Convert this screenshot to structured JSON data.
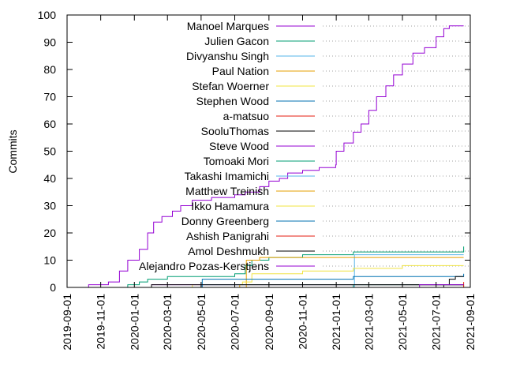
{
  "chart_data": {
    "type": "line",
    "title": "",
    "xlabel": "",
    "ylabel": "Commits",
    "xlim": [
      "2019-09-01",
      "2021-09-01"
    ],
    "ylim": [
      0,
      100
    ],
    "grid": false,
    "legend_position": "top-left",
    "x_ticks": [
      "2019-09-01",
      "2019-11-01",
      "2020-01-01",
      "2020-03-01",
      "2020-05-01",
      "2020-07-01",
      "2020-09-01",
      "2020-11-01",
      "2021-01-01",
      "2021-03-01",
      "2021-05-01",
      "2021-07-01",
      "2021-09-01"
    ],
    "y_ticks": [
      0,
      10,
      20,
      30,
      40,
      50,
      60,
      70,
      80,
      90,
      100
    ],
    "series": [
      {
        "name": "Manoel Marques",
        "color": "#9400d3",
        "points": [
          [
            "2019-09-15",
            0
          ],
          [
            "2019-10-10",
            1
          ],
          [
            "2019-11-15",
            2
          ],
          [
            "2019-12-05",
            6
          ],
          [
            "2019-12-20",
            10
          ],
          [
            "2020-01-10",
            14
          ],
          [
            "2020-01-25",
            20
          ],
          [
            "2020-02-05",
            24
          ],
          [
            "2020-02-20",
            26
          ],
          [
            "2020-03-10",
            28
          ],
          [
            "2020-03-25",
            30
          ],
          [
            "2020-04-15",
            32
          ],
          [
            "2020-05-20",
            33
          ],
          [
            "2020-06-15",
            33
          ],
          [
            "2020-07-01",
            34
          ],
          [
            "2020-07-20",
            35
          ],
          [
            "2020-08-15",
            37
          ],
          [
            "2020-09-01",
            39
          ],
          [
            "2020-09-20",
            40
          ],
          [
            "2020-10-05",
            42
          ],
          [
            "2020-11-01",
            43
          ],
          [
            "2020-12-01",
            44
          ],
          [
            "2020-12-31",
            45
          ],
          [
            "2021-01-01",
            50
          ],
          [
            "2021-01-15",
            53
          ],
          [
            "2021-02-01",
            57
          ],
          [
            "2021-02-15",
            60
          ],
          [
            "2021-03-01",
            65
          ],
          [
            "2021-03-15",
            70
          ],
          [
            "2021-04-01",
            74
          ],
          [
            "2021-04-15",
            78
          ],
          [
            "2021-05-01",
            82
          ],
          [
            "2021-05-20",
            86
          ],
          [
            "2021-06-10",
            88
          ],
          [
            "2021-07-01",
            92
          ],
          [
            "2021-07-15",
            95
          ],
          [
            "2021-07-25",
            96
          ],
          [
            "2021-08-20",
            96
          ]
        ]
      },
      {
        "name": "Julien Gacon",
        "color": "#009e73",
        "points": [
          [
            "2019-12-10",
            0
          ],
          [
            "2019-12-20",
            1
          ],
          [
            "2020-01-10",
            2
          ],
          [
            "2020-01-25",
            3
          ],
          [
            "2020-03-01",
            4
          ],
          [
            "2020-05-01",
            4
          ],
          [
            "2020-07-01",
            5
          ],
          [
            "2020-07-20",
            8
          ],
          [
            "2020-08-01",
            10
          ],
          [
            "2020-09-01",
            11
          ],
          [
            "2020-11-01",
            12
          ],
          [
            "2021-01-15",
            12
          ],
          [
            "2021-02-01",
            13
          ],
          [
            "2021-08-15",
            13
          ],
          [
            "2021-08-20",
            15
          ]
        ]
      },
      {
        "name": "Divyanshu Singh",
        "color": "#56b4e9",
        "points": [
          [
            "2021-02-01",
            0
          ],
          [
            "2021-02-03",
            12
          ],
          [
            "2021-08-20",
            12
          ]
        ]
      },
      {
        "name": "Paul Nation",
        "color": "#e69f00",
        "points": [
          [
            "2020-07-20",
            0
          ],
          [
            "2020-07-22",
            10
          ],
          [
            "2020-08-15",
            11
          ],
          [
            "2021-08-20",
            11
          ]
        ]
      },
      {
        "name": "Stefan Woerner",
        "color": "#f0e442",
        "points": [
          [
            "2019-12-15",
            0
          ],
          [
            "2020-04-15",
            1
          ],
          [
            "2020-07-15",
            2
          ],
          [
            "2020-08-01",
            5
          ],
          [
            "2020-11-01",
            6
          ],
          [
            "2021-01-20",
            6
          ],
          [
            "2021-02-01",
            7
          ],
          [
            "2021-05-01",
            8
          ],
          [
            "2021-08-20",
            8
          ]
        ]
      },
      {
        "name": "Stephen Wood",
        "color": "#0072b2",
        "points": [
          [
            "2020-05-01",
            0
          ],
          [
            "2020-05-03",
            3
          ],
          [
            "2020-09-01",
            3
          ],
          [
            "2021-01-25",
            3
          ],
          [
            "2021-02-01",
            4
          ],
          [
            "2021-08-20",
            5
          ]
        ]
      },
      {
        "name": "a-matsuo",
        "color": "#e51e10",
        "points": [
          [
            "2020-09-01",
            0
          ],
          [
            "2021-04-15",
            0
          ],
          [
            "2021-05-01",
            1
          ],
          [
            "2021-08-20",
            2
          ]
        ]
      },
      {
        "name": "SooluThomas",
        "color": "#000000",
        "points": [
          [
            "2021-07-01",
            0
          ],
          [
            "2021-07-15",
            1
          ],
          [
            "2021-07-25",
            3
          ],
          [
            "2021-08-05",
            4
          ],
          [
            "2021-08-20",
            4
          ]
        ]
      },
      {
        "name": "Steve Wood",
        "color": "#9400d3",
        "points": [
          [
            "2020-01-01",
            0
          ],
          [
            "2020-02-01",
            1
          ],
          [
            "2021-08-20",
            1
          ]
        ]
      },
      {
        "name": "Tomoaki Mori",
        "color": "#009e73",
        "points": [
          [
            "2021-01-15",
            0
          ],
          [
            "2021-02-01",
            1
          ],
          [
            "2021-08-20",
            1
          ]
        ]
      },
      {
        "name": "Takashi Imamichi",
        "color": "#56b4e9",
        "points": [
          [
            "2020-10-01",
            0
          ],
          [
            "2021-08-20",
            1
          ]
        ]
      },
      {
        "name": "Matthew Treinish",
        "color": "#e69f00",
        "points": [
          [
            "2020-07-01",
            0
          ],
          [
            "2020-07-10",
            1
          ],
          [
            "2021-08-20",
            1
          ]
        ]
      },
      {
        "name": "Ikko Hamamura",
        "color": "#f0e442",
        "points": [
          [
            "2021-03-01",
            0
          ],
          [
            "2021-08-20",
            1
          ]
        ]
      },
      {
        "name": "Donny Greenberg",
        "color": "#0072b2",
        "points": [
          [
            "2019-11-01",
            0
          ],
          [
            "2020-05-01",
            1
          ],
          [
            "2021-08-20",
            1
          ]
        ]
      },
      {
        "name": "Ashish Panigrahi",
        "color": "#e51e10",
        "points": [
          [
            "2021-05-01",
            0
          ],
          [
            "2021-08-20",
            1
          ]
        ]
      },
      {
        "name": "Amol Deshmukh",
        "color": "#000000",
        "points": [
          [
            "2020-01-01",
            0
          ],
          [
            "2020-02-01",
            1
          ],
          [
            "2021-08-20",
            1
          ]
        ]
      },
      {
        "name": "Alejandro Pozas-Kerstjens",
        "color": "#9400d3",
        "points": [
          [
            "2021-05-15",
            0
          ],
          [
            "2021-06-01",
            1
          ],
          [
            "2021-08-20",
            1
          ]
        ]
      }
    ]
  }
}
